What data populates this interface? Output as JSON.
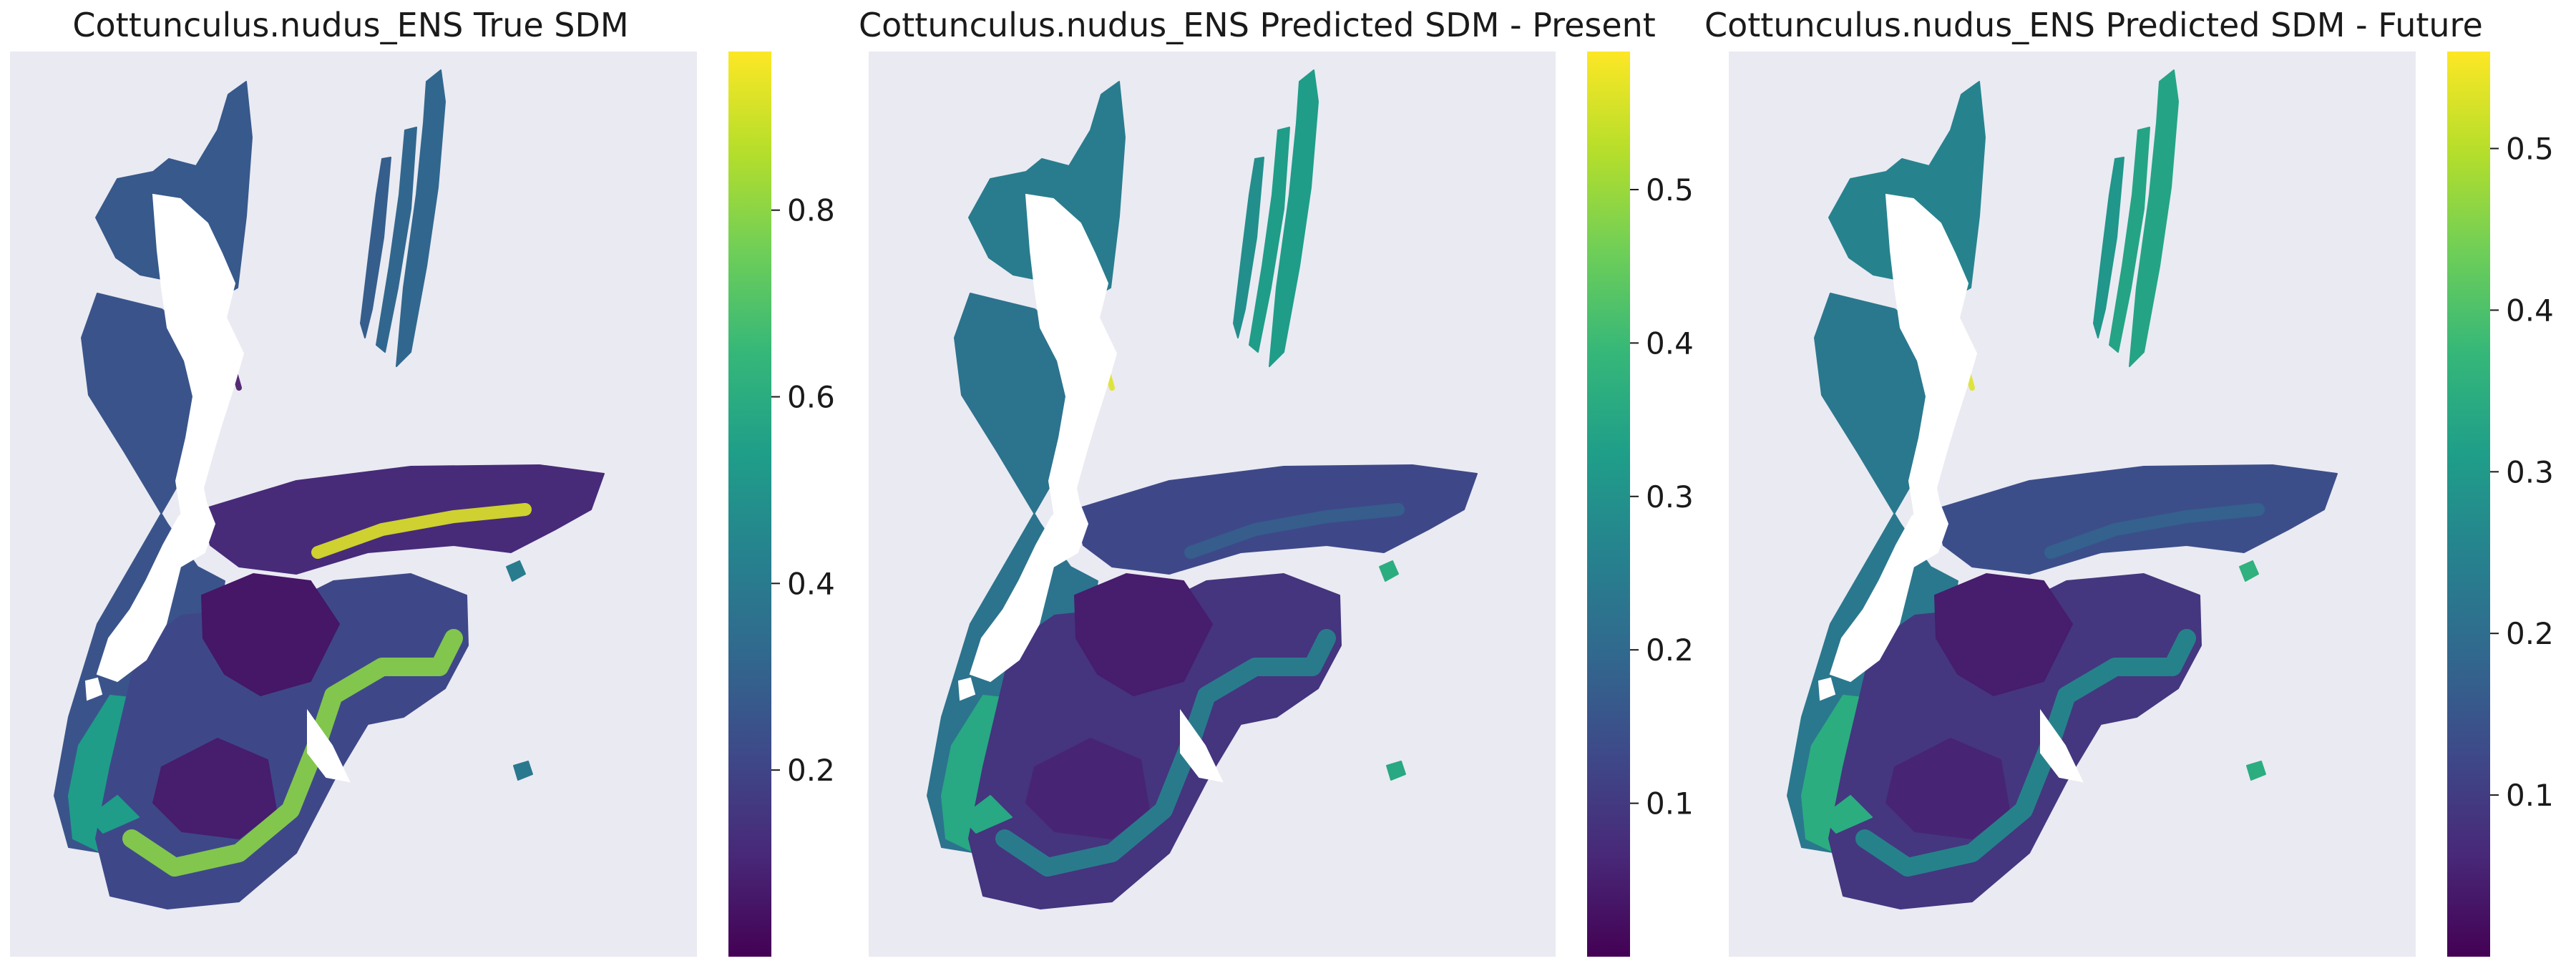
{
  "chart_data": [
    {
      "type": "heatmap",
      "title": "Cottunculus.nudus_ENS True SDM",
      "xlabel": "",
      "ylabel": "",
      "grid": false,
      "colormap": "viridis",
      "colorbar": {
        "vmin": 0.0,
        "vmax": 0.97,
        "ticks": [
          0.2,
          0.4,
          0.6,
          0.8
        ],
        "tick_labels": [
          "0.2",
          "0.4",
          "0.6",
          "0.8"
        ]
      },
      "summary_values": {
        "nearshore_band": 0.08,
        "offshore_shelf": 0.3,
        "southern_plateau_rim": 0.82,
        "chatham_rise_ridge": 0.95
      }
    },
    {
      "type": "heatmap",
      "title": "Cottunculus.nudus_ENS Predicted SDM - Present",
      "xlabel": "",
      "ylabel": "",
      "grid": false,
      "colormap": "viridis",
      "colorbar": {
        "vmin": 0.0,
        "vmax": 0.59,
        "ticks": [
          0.1,
          0.2,
          0.3,
          0.4,
          0.5
        ],
        "tick_labels": [
          "0.1",
          "0.2",
          "0.3",
          "0.4",
          "0.5"
        ]
      },
      "summary_values": {
        "nearshore_band": 0.06,
        "offshore_shelf": 0.36,
        "southern_plateau_rim": 0.38,
        "chatham_rise_ridge": 0.22
      }
    },
    {
      "type": "heatmap",
      "title": "Cottunculus.nudus_ENS Predicted SDM - Future",
      "xlabel": "",
      "ylabel": "",
      "grid": false,
      "colormap": "viridis",
      "colorbar": {
        "vmin": 0.0,
        "vmax": 0.56,
        "ticks": [
          0.1,
          0.2,
          0.3,
          0.4,
          0.5
        ],
        "tick_labels": [
          "0.1",
          "0.2",
          "0.3",
          "0.4",
          "0.5"
        ]
      },
      "summary_values": {
        "nearshore_band": 0.06,
        "offshore_shelf": 0.35,
        "southern_plateau_rim": 0.37,
        "chatham_rise_ridge": 0.21
      }
    }
  ]
}
